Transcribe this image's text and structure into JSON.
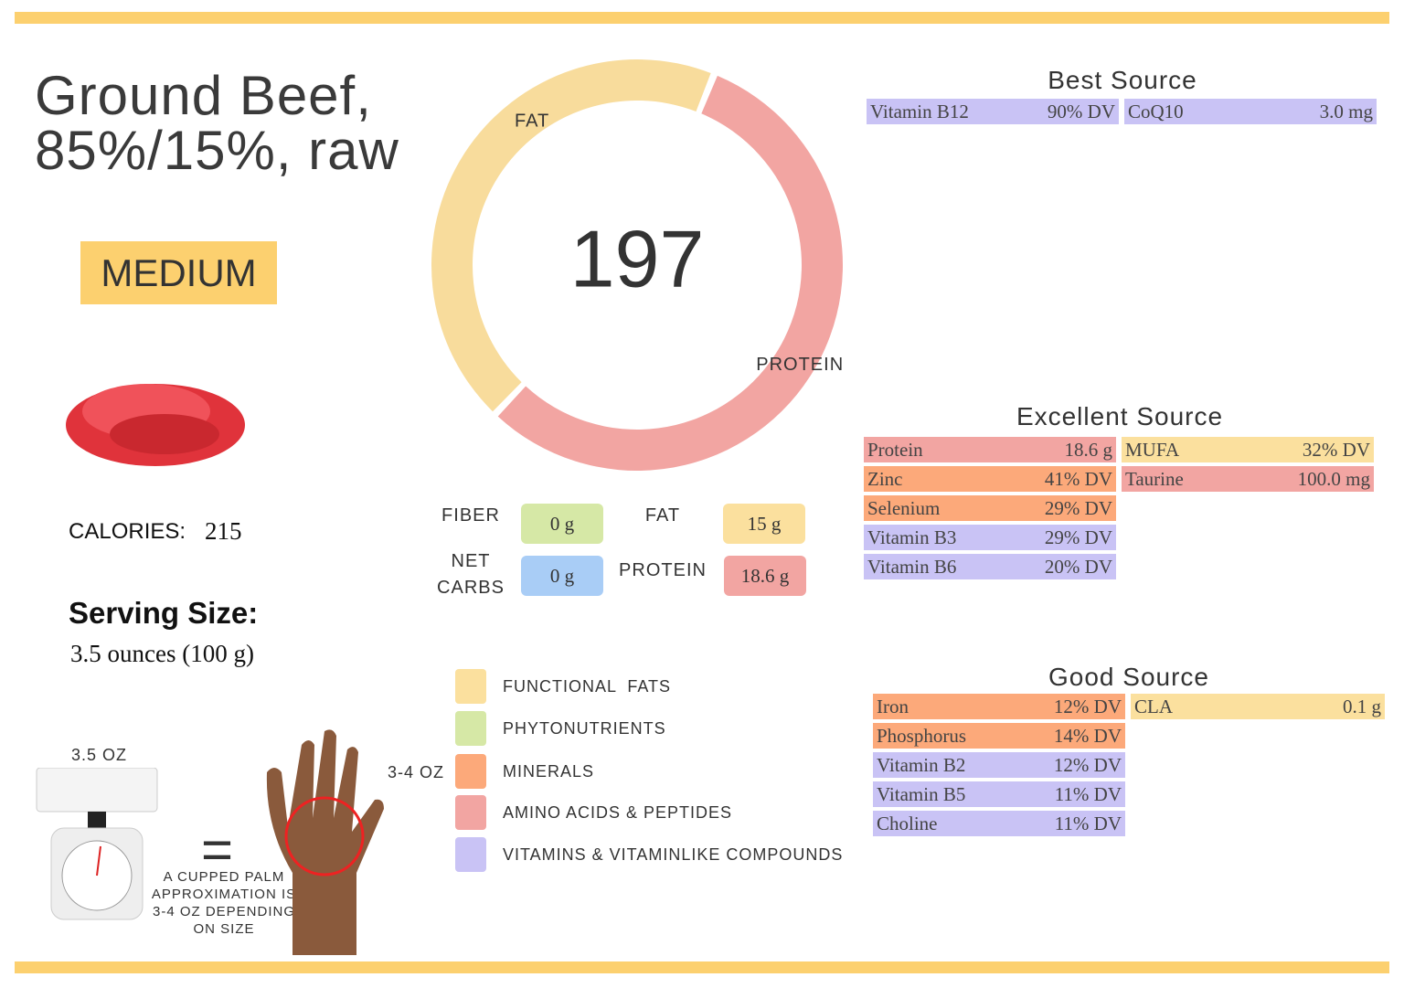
{
  "header": {
    "title_line1": "Ground Beef,",
    "title_line2": "85%/15%, raw",
    "badge": "MEDIUM"
  },
  "calories": {
    "label": "CALORIES:",
    "value": "215"
  },
  "serving": {
    "label": "Serving Size:",
    "value": "3.5 ounces (100 g)"
  },
  "portion": {
    "scale_label": "3.5 OZ",
    "equals": "=",
    "hand_label": "3-4 OZ",
    "note": [
      "A CUPPED PALM",
      "APPROXIMATION IS",
      "3-4 OZ DEPENDING",
      "ON SIZE"
    ]
  },
  "donut": {
    "center": "197",
    "segments": [
      {
        "label": "PROTEIN",
        "value": 56,
        "color": "#f2a5a2"
      },
      {
        "label": "FAT",
        "value": 44,
        "color": "#f8dc9c"
      }
    ]
  },
  "macros": [
    {
      "label": "FIBER",
      "value": "0 g",
      "color": "#d6e8a6"
    },
    {
      "label": "FAT",
      "value": "15 g",
      "color": "#fbe09e"
    },
    {
      "label": "NET CARBS",
      "value": "0 g",
      "color": "#a9cdf6"
    },
    {
      "label": "PROTEIN",
      "value": "18.6 g",
      "color": "#f2a5a2"
    }
  ],
  "legend": [
    {
      "label": "FUNCTIONAL  FATS",
      "color": "#fbe09e"
    },
    {
      "label": "PHYTONUTRIENTS",
      "color": "#d6e8a6"
    },
    {
      "label": "MINERALS",
      "color": "#fca97a"
    },
    {
      "label": "AMINO ACIDS & PEPTIDES",
      "color": "#f2a5a2"
    },
    {
      "label": "VITAMINS & VITAMINLIKE COMPOUNDS",
      "color": "#c9c3f5"
    }
  ],
  "sections": [
    {
      "title": "Best Source",
      "columns": [
        [
          {
            "name": "Vitamin B12",
            "value": "90% DV",
            "color": "#c9c3f5"
          }
        ],
        [
          {
            "name": "CoQ10",
            "value": "3.0 mg",
            "color": "#c9c3f5"
          }
        ]
      ]
    },
    {
      "title": "Excellent Source",
      "columns": [
        [
          {
            "name": "Protein",
            "value": "18.6 g",
            "color": "#f2a5a2"
          },
          {
            "name": "Zinc",
            "value": "41% DV",
            "color": "#fca97a"
          },
          {
            "name": "Selenium",
            "value": "29% DV",
            "color": "#fca97a"
          },
          {
            "name": "Vitamin B3",
            "value": "29% DV",
            "color": "#c9c3f5"
          },
          {
            "name": "Vitamin B6",
            "value": "20% DV",
            "color": "#c9c3f5"
          }
        ],
        [
          {
            "name": "MUFA",
            "value": "32% DV",
            "color": "#fbe09e"
          },
          {
            "name": "Taurine",
            "value": "100.0 mg",
            "color": "#f2a5a2"
          }
        ]
      ]
    },
    {
      "title": "Good Source",
      "columns": [
        [
          {
            "name": "Iron",
            "value": "12% DV",
            "color": "#fca97a"
          },
          {
            "name": "Phosphorus",
            "value": "14% DV",
            "color": "#fca97a"
          },
          {
            "name": "Vitamin B2",
            "value": "12% DV",
            "color": "#c9c3f5"
          },
          {
            "name": "Vitamin B5",
            "value": "11% DV",
            "color": "#c9c3f5"
          },
          {
            "name": "Choline",
            "value": "11% DV",
            "color": "#c9c3f5"
          }
        ],
        [
          {
            "name": "CLA",
            "value": "0.1 g",
            "color": "#fbe09e"
          }
        ]
      ]
    }
  ]
}
